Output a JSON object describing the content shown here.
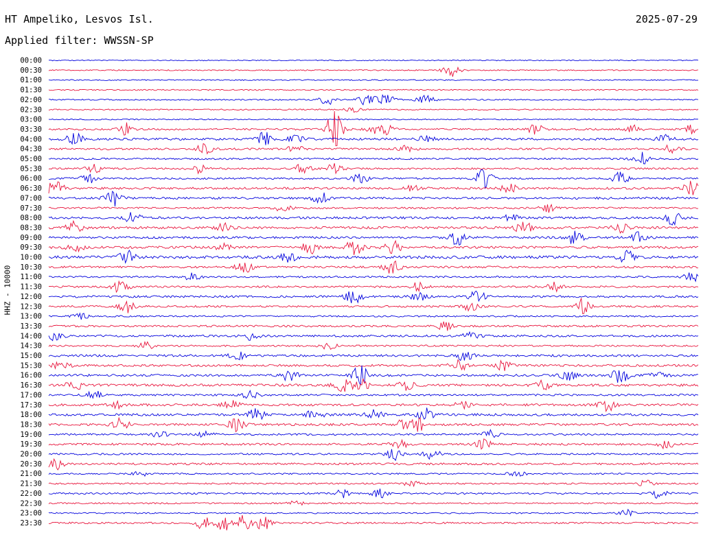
{
  "header": {
    "station": "HT Ampeliko, Lesvos Isl.",
    "date": "2025-07-29",
    "filter": "Applied filter: WWSSN-SP"
  },
  "chart_data": {
    "type": "line",
    "ylabel": "HHZ - 10000",
    "colors": [
      "#0000dd",
      "#e8143c"
    ],
    "rows": [
      {
        "time": "00:00",
        "level": 0.05,
        "events": []
      },
      {
        "time": "00:30",
        "level": 0.08,
        "events": [
          [
            0.62,
            0.9
          ]
        ]
      },
      {
        "time": "01:00",
        "level": 0.08,
        "events": []
      },
      {
        "time": "01:30",
        "level": 0.12,
        "events": []
      },
      {
        "time": "02:00",
        "level": 0.12,
        "events": [
          [
            0.43,
            0.3
          ],
          [
            0.43,
            0.4
          ],
          [
            0.49,
            0.9
          ],
          [
            0.52,
            0.3
          ],
          [
            0.52,
            0.4
          ],
          [
            0.58,
            0.7
          ]
        ]
      },
      {
        "time": "02:30",
        "level": 0.12,
        "events": [
          [
            0.47,
            0.3
          ]
        ]
      },
      {
        "time": "03:00",
        "level": 0.1,
        "events": []
      },
      {
        "time": "03:30",
        "level": 0.3,
        "events": [
          [
            0.12,
            0.8
          ],
          [
            0.44,
            0.3
          ],
          [
            0.44,
            0.35
          ],
          [
            0.44,
            0.4
          ],
          [
            0.44,
            0.45
          ],
          [
            0.44,
            0.5
          ],
          [
            0.44,
            0.55
          ],
          [
            0.52,
            0.6
          ],
          [
            0.5,
            0.55
          ],
          [
            0.75,
            0.6
          ],
          [
            0.9,
            0.5
          ],
          [
            0.99,
            0.6
          ]
        ]
      },
      {
        "time": "04:00",
        "level": 0.45,
        "events": [
          [
            0.04,
            0.8
          ],
          [
            0.33,
            1.0
          ],
          [
            0.38,
            0.6
          ],
          [
            0.58,
            0.5
          ],
          [
            0.95,
            0.6
          ]
        ]
      },
      {
        "time": "04:30",
        "level": 0.35,
        "events": [
          [
            0.24,
            0.7
          ],
          [
            0.38,
            0.5
          ],
          [
            0.55,
            0.4
          ],
          [
            0.96,
            0.6
          ]
        ]
      },
      {
        "time": "05:00",
        "level": 0.3,
        "events": [
          [
            0.91,
            1.0
          ]
        ]
      },
      {
        "time": "05:30",
        "level": 0.3,
        "events": [
          [
            0.07,
            0.5
          ],
          [
            0.23,
            0.6
          ],
          [
            0.39,
            0.7
          ],
          [
            0.44,
            0.7
          ]
        ]
      },
      {
        "time": "06:00",
        "level": 0.3,
        "events": [
          [
            0.06,
            0.7
          ],
          [
            0.48,
            0.6
          ],
          [
            0.67,
            1.3
          ],
          [
            0.88,
            0.8
          ]
        ]
      },
      {
        "time": "06:30",
        "level": 0.45,
        "events": [
          [
            0.01,
            1.3
          ],
          [
            0.99,
            0.9
          ],
          [
            0.71,
            0.7
          ],
          [
            0.56,
            0.5
          ]
        ]
      },
      {
        "time": "07:00",
        "level": 0.45,
        "events": [
          [
            0.1,
            1.0
          ],
          [
            0.42,
            0.8
          ]
        ]
      },
      {
        "time": "07:30",
        "level": 0.3,
        "events": [
          [
            0.36,
            0.5
          ],
          [
            0.77,
            0.5
          ]
        ]
      },
      {
        "time": "08:00",
        "level": 0.45,
        "events": [
          [
            0.13,
            0.7
          ],
          [
            0.71,
            0.5
          ],
          [
            0.96,
            0.9
          ]
        ]
      },
      {
        "time": "08:30",
        "level": 0.5,
        "events": [
          [
            0.04,
            0.8
          ],
          [
            0.27,
            0.7
          ],
          [
            0.73,
            1.0
          ],
          [
            0.88,
            0.6
          ]
        ]
      },
      {
        "time": "09:00",
        "level": 0.45,
        "events": [
          [
            0.63,
            1.0
          ],
          [
            0.81,
            0.9
          ],
          [
            0.91,
            0.7
          ]
        ]
      },
      {
        "time": "09:30",
        "level": 0.55,
        "events": [
          [
            0.04,
            0.6
          ],
          [
            0.4,
            0.9
          ],
          [
            0.47,
            1.0
          ],
          [
            0.53,
            0.8
          ],
          [
            0.27,
            0.5
          ]
        ]
      },
      {
        "time": "10:00",
        "level": 0.65,
        "events": [
          [
            0.12,
            0.9
          ],
          [
            0.37,
            0.6
          ],
          [
            0.89,
            0.8
          ]
        ]
      },
      {
        "time": "10:30",
        "level": 0.4,
        "events": [
          [
            0.3,
            0.8
          ],
          [
            0.53,
            1.0
          ]
        ]
      },
      {
        "time": "11:00",
        "level": 0.3,
        "events": [
          [
            0.22,
            0.5
          ],
          [
            0.99,
            0.6
          ]
        ]
      },
      {
        "time": "11:30",
        "level": 0.35,
        "events": [
          [
            0.11,
            0.8
          ],
          [
            0.57,
            0.6
          ],
          [
            0.78,
            0.6
          ]
        ]
      },
      {
        "time": "12:00",
        "level": 0.4,
        "events": [
          [
            0.47,
            1.0
          ],
          [
            0.66,
            0.8
          ],
          [
            0.57,
            0.5
          ]
        ]
      },
      {
        "time": "12:30",
        "level": 0.35,
        "events": [
          [
            0.12,
            0.8
          ],
          [
            0.65,
            0.8
          ],
          [
            0.82,
            1.0
          ]
        ]
      },
      {
        "time": "13:00",
        "level": 0.25,
        "events": [
          [
            0.05,
            0.4
          ]
        ]
      },
      {
        "time": "13:30",
        "level": 0.35,
        "events": [
          [
            0.61,
            0.8
          ]
        ]
      },
      {
        "time": "14:00",
        "level": 0.4,
        "events": [
          [
            0.01,
            0.6
          ],
          [
            0.31,
            0.5
          ],
          [
            0.65,
            0.5
          ]
        ]
      },
      {
        "time": "14:30",
        "level": 0.3,
        "events": [
          [
            0.15,
            0.5
          ],
          [
            0.43,
            0.5
          ]
        ]
      },
      {
        "time": "15:00",
        "level": 0.45,
        "events": [
          [
            0.64,
            0.8
          ],
          [
            0.29,
            0.5
          ]
        ]
      },
      {
        "time": "15:30",
        "level": 0.45,
        "events": [
          [
            0.02,
            0.6
          ],
          [
            0.63,
            0.9
          ],
          [
            0.7,
            0.6
          ]
        ]
      },
      {
        "time": "16:00",
        "level": 0.45,
        "events": [
          [
            0.37,
            0.9
          ],
          [
            0.48,
            1.3
          ],
          [
            0.88,
            1.0
          ],
          [
            0.94,
            0.5
          ],
          [
            0.8,
            0.6
          ]
        ]
      },
      {
        "time": "16:30",
        "level": 0.55,
        "events": [
          [
            0.04,
            0.6
          ],
          [
            0.45,
            0.9
          ],
          [
            0.48,
            1.0
          ],
          [
            0.55,
            0.6
          ],
          [
            0.76,
            0.6
          ]
        ]
      },
      {
        "time": "17:00",
        "level": 0.35,
        "events": [
          [
            0.07,
            0.6
          ],
          [
            0.31,
            0.5
          ]
        ]
      },
      {
        "time": "17:30",
        "level": 0.5,
        "events": [
          [
            0.11,
            0.6
          ],
          [
            0.28,
            0.6
          ],
          [
            0.86,
            0.8
          ],
          [
            0.64,
            0.6
          ]
        ]
      },
      {
        "time": "18:00",
        "level": 0.5,
        "events": [
          [
            0.32,
            0.8
          ],
          [
            0.41,
            0.7
          ],
          [
            0.58,
            0.8
          ],
          [
            0.5,
            0.6
          ]
        ]
      },
      {
        "time": "18:30",
        "level": 0.45,
        "events": [
          [
            0.11,
            0.8
          ],
          [
            0.29,
            0.9
          ],
          [
            0.54,
            0.8
          ],
          [
            0.57,
            0.9
          ]
        ]
      },
      {
        "time": "19:00",
        "level": 0.3,
        "events": [
          [
            0.17,
            0.5
          ],
          [
            0.24,
            0.5
          ],
          [
            0.68,
            0.5
          ]
        ]
      },
      {
        "time": "19:30",
        "level": 0.4,
        "events": [
          [
            0.54,
            0.6
          ],
          [
            0.67,
            0.6
          ],
          [
            0.95,
            0.5
          ]
        ]
      },
      {
        "time": "20:00",
        "level": 0.3,
        "events": [
          [
            0.53,
            0.9
          ],
          [
            0.59,
            0.7
          ]
        ]
      },
      {
        "time": "20:30",
        "level": 0.4,
        "events": [
          [
            0.01,
            0.8
          ]
        ]
      },
      {
        "time": "21:00",
        "level": 0.2,
        "events": [
          [
            0.14,
            0.4
          ],
          [
            0.72,
            0.4
          ]
        ]
      },
      {
        "time": "21:30",
        "level": 0.25,
        "events": [
          [
            0.56,
            0.4
          ],
          [
            0.92,
            0.4
          ]
        ]
      },
      {
        "time": "22:00",
        "level": 0.3,
        "events": [
          [
            0.45,
            0.6
          ],
          [
            0.51,
            0.6
          ],
          [
            0.94,
            0.6
          ]
        ]
      },
      {
        "time": "22:30",
        "level": 0.2,
        "events": [
          [
            0.38,
            0.3
          ]
        ]
      },
      {
        "time": "23:00",
        "level": 0.15,
        "events": [
          [
            0.89,
            0.5
          ]
        ]
      },
      {
        "time": "23:30",
        "level": 0.3,
        "events": [
          [
            0.24,
            1.0
          ],
          [
            0.27,
            1.0
          ],
          [
            0.3,
            1.0
          ],
          [
            0.33,
            0.9
          ]
        ]
      }
    ]
  }
}
